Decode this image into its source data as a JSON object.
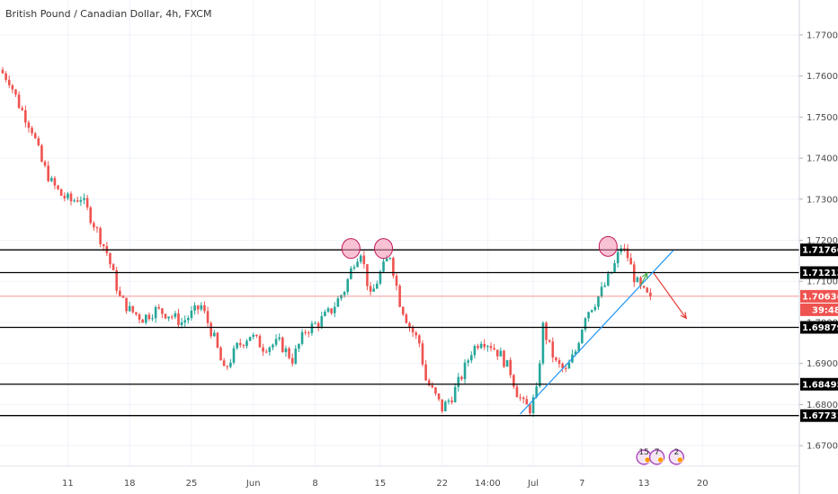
{
  "chart_data": {
    "type": "candlestick",
    "title": "British Pound / Canadian Dollar, 4h, FXCM",
    "ylim": [
      1.665,
      1.7785
    ],
    "y_ticks": [
      "1.67000",
      "1.68000",
      "1.69000",
      "1.70000",
      "1.71000",
      "1.72000",
      "1.73000",
      "1.74000",
      "1.75000",
      "1.76000",
      "1.77000"
    ],
    "x_ticks": [
      {
        "label": "11",
        "i": 20
      },
      {
        "label": "18",
        "i": 39
      },
      {
        "label": "25",
        "i": 58
      },
      {
        "label": "Jun",
        "i": 77
      },
      {
        "label": "8",
        "i": 96
      },
      {
        "label": "15",
        "i": 116
      },
      {
        "label": "22",
        "i": 135
      },
      {
        "label": "14:00",
        "i": 149
      },
      {
        "label": "Jul",
        "i": 163
      },
      {
        "label": "7",
        "i": 178
      },
      {
        "label": "13",
        "i": 197
      },
      {
        "label": "20",
        "i": 215
      }
    ],
    "candle_count": 200,
    "anchors": [
      [
        0,
        1.7615
      ],
      [
        3,
        1.759
      ],
      [
        6,
        1.753
      ],
      [
        10,
        1.747
      ],
      [
        13,
        1.739
      ],
      [
        16,
        1.734
      ],
      [
        19,
        1.731
      ],
      [
        22,
        1.7295
      ],
      [
        25,
        1.7305
      ],
      [
        29,
        1.724
      ],
      [
        33,
        1.717
      ],
      [
        37,
        1.706
      ],
      [
        40,
        1.703
      ],
      [
        44,
        1.701
      ],
      [
        48,
        1.703
      ],
      [
        52,
        1.702
      ],
      [
        56,
        1.7
      ],
      [
        62,
        1.704
      ],
      [
        66,
        1.696
      ],
      [
        69,
        1.688
      ],
      [
        73,
        1.694
      ],
      [
        77,
        1.697
      ],
      [
        81,
        1.694
      ],
      [
        86,
        1.695
      ],
      [
        90,
        1.691
      ],
      [
        94,
        1.698
      ],
      [
        98,
        1.7
      ],
      [
        102,
        1.703
      ],
      [
        106,
        1.708
      ],
      [
        109,
        1.715
      ],
      [
        111,
        1.7175
      ],
      [
        114,
        1.706
      ],
      [
        117,
        1.712
      ],
      [
        120,
        1.7165
      ],
      [
        123,
        1.705
      ],
      [
        126,
        1.699
      ],
      [
        129,
        1.695
      ],
      [
        131,
        1.686
      ],
      [
        134,
        1.682
      ],
      [
        136,
        1.679
      ],
      [
        139,
        1.682
      ],
      [
        142,
        1.687
      ],
      [
        145,
        1.693
      ],
      [
        148,
        1.696
      ],
      [
        151,
        1.6945
      ],
      [
        154,
        1.692
      ],
      [
        157,
        1.688
      ],
      [
        159,
        1.683
      ],
      [
        161,
        1.68
      ],
      [
        163,
        1.679
      ],
      [
        165,
        1.683
      ],
      [
        167,
        1.699
      ],
      [
        169,
        1.694
      ],
      [
        171,
        1.69
      ],
      [
        174,
        1.688
      ],
      [
        177,
        1.693
      ],
      [
        180,
        1.702
      ],
      [
        183,
        1.705
      ],
      [
        186,
        1.709
      ],
      [
        189,
        1.714
      ],
      [
        191,
        1.7185
      ],
      [
        193,
        1.716
      ],
      [
        195,
        1.711
      ],
      [
        197,
        1.708
      ],
      [
        199,
        1.7064
      ]
    ],
    "support_resistance_levels": [
      1.71766,
      1.71213,
      1.69879,
      1.68495,
      1.67731
    ],
    "current_price": "1.70636",
    "current_price_value": 1.70636,
    "countdown": "39:48",
    "trendline": {
      "from": {
        "i": 159,
        "price": 1.6777
      },
      "to": {
        "i": 206,
        "price": 1.7175
      }
    },
    "projection_up": {
      "from": {
        "i": 196,
        "price": 1.709
      },
      "to": {
        "i": 198,
        "price": 1.712
      }
    },
    "projection_down": {
      "from": {
        "i": 200,
        "price": 1.712
      },
      "to": {
        "i": 210,
        "price": 1.701
      }
    },
    "highlight_peaks": [
      {
        "i": 107,
        "price": 1.718
      },
      {
        "i": 117,
        "price": 1.718
      },
      {
        "i": 186,
        "price": 1.7185
      }
    ],
    "event_badges": [
      {
        "count": "15",
        "i": 197
      },
      {
        "count": "7",
        "i": 201
      },
      {
        "count": "2",
        "i": 207
      }
    ],
    "colors": {
      "up": "#26a69a",
      "down": "#ef5350",
      "level_line": "#000000",
      "trendline": "#2196f3",
      "price_line": "#ef5350",
      "grid": "#f0f3fa",
      "highlight": "#f48fb1",
      "projection_up": "#4caf50",
      "projection_down": "#e53935"
    }
  }
}
